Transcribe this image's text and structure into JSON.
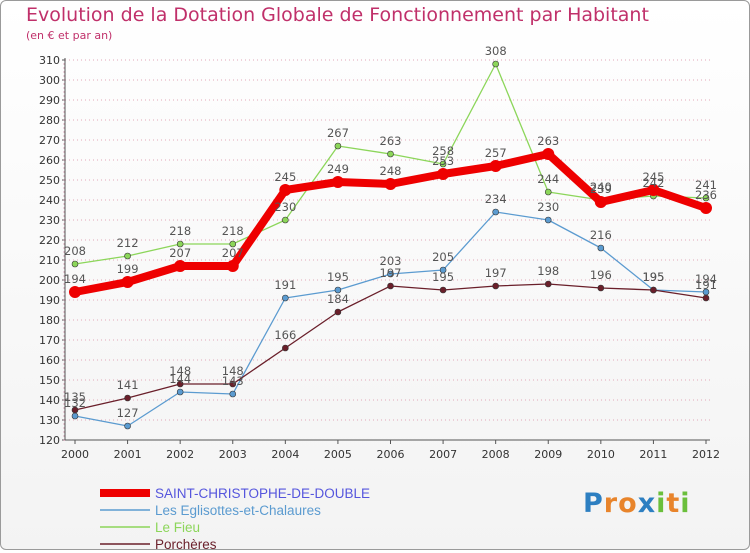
{
  "header": {
    "title": "Evolution de la Dotation Globale de Fonctionnement par Habitant",
    "subtitle": "(en € et par an)"
  },
  "logo": {
    "text": "Proxiti"
  },
  "colors": {
    "grid": "#e3a7b8",
    "axis": "#555555",
    "tick_text": "#333333",
    "value_text": "#555555",
    "logo_p": "#2d7fc1",
    "logo_o": "#e8842b",
    "logo_x": "#2d7fc1",
    "logo_i": "#6abf3b",
    "logo_t": "#e8842b",
    "logo_i2": "#6abf3b"
  },
  "chart_data": {
    "type": "line",
    "title": "Evolution de la Dotation Globale de Fonctionnement par Habitant",
    "subtitle": "(en € et par an)",
    "xlabel": "",
    "ylabel": "",
    "x": [
      "2000",
      "2001",
      "2002",
      "2003",
      "2004",
      "2005",
      "2006",
      "2007",
      "2008",
      "2009",
      "2010",
      "2011",
      "2012"
    ],
    "ylim": [
      120,
      310
    ],
    "yticks": [
      120,
      130,
      140,
      150,
      160,
      170,
      180,
      190,
      200,
      210,
      220,
      230,
      240,
      250,
      260,
      270,
      280,
      290,
      300,
      310
    ],
    "grid": true,
    "legend_position": "bottom-left",
    "series": [
      {
        "name": "SAINT-CHRISTOPHE-DE-DOUBLE",
        "color": "#ee0000",
        "label_color": "#5555dd",
        "values": [
          194,
          199,
          207,
          207,
          245,
          249,
          248,
          253,
          257,
          263,
          239,
          245,
          236
        ],
        "bold": true
      },
      {
        "name": "Les Eglisottes-et-Chalaures",
        "color": "#5b9bd0",
        "label_color": "#5b9bd0",
        "values": [
          132,
          127,
          144,
          143,
          191,
          195,
          203,
          205,
          234,
          230,
          216,
          195,
          194
        ]
      },
      {
        "name": "Le Fieu",
        "color": "#8cd65a",
        "label_color": "#8cd65a",
        "values": [
          208,
          212,
          218,
          218,
          230,
          267,
          263,
          258,
          308,
          244,
          240,
          242,
          241
        ]
      },
      {
        "name": "Porchères",
        "color": "#6a1f2a",
        "label_color": "#6a1f2a",
        "values": [
          135,
          141,
          148,
          148,
          166,
          184,
          197,
          195,
          197,
          198,
          196,
          195,
          191
        ]
      }
    ]
  }
}
